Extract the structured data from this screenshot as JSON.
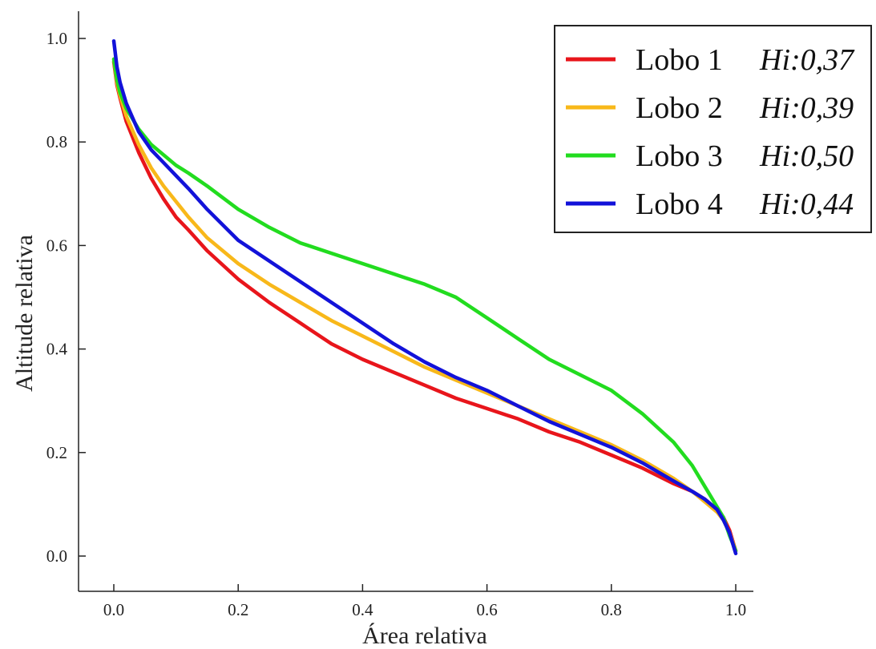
{
  "chart_data": {
    "type": "line",
    "title": "",
    "xlabel": "Área relativa",
    "ylabel": "Altitude relativa",
    "xlim": [
      0.0,
      1.0
    ],
    "ylim": [
      0.0,
      1.0
    ],
    "x_ticks": [
      "0.0",
      "0.2",
      "0.4",
      "0.6",
      "0.8",
      "1.0"
    ],
    "y_ticks": [
      "0.0",
      "0.2",
      "0.4",
      "0.6",
      "0.8",
      "1.0"
    ],
    "grid": false,
    "legend_position": "top-right",
    "series": [
      {
        "name": "Lobo 1",
        "hi": "Hi:0,37",
        "color": "#e8151b",
        "x": [
          0.0,
          0.005,
          0.01,
          0.02,
          0.04,
          0.06,
          0.08,
          0.1,
          0.12,
          0.15,
          0.2,
          0.25,
          0.3,
          0.35,
          0.4,
          0.45,
          0.5,
          0.55,
          0.6,
          0.65,
          0.7,
          0.75,
          0.8,
          0.85,
          0.9,
          0.93,
          0.95,
          0.97,
          0.98,
          0.99,
          1.0
        ],
        "y": [
          0.955,
          0.91,
          0.885,
          0.84,
          0.78,
          0.73,
          0.69,
          0.655,
          0.63,
          0.59,
          0.535,
          0.49,
          0.45,
          0.41,
          0.38,
          0.355,
          0.33,
          0.305,
          0.285,
          0.265,
          0.24,
          0.22,
          0.195,
          0.17,
          0.14,
          0.125,
          0.11,
          0.09,
          0.075,
          0.05,
          0.01
        ]
      },
      {
        "name": "Lobo 2",
        "hi": "Hi:0,39",
        "color": "#f8b81a",
        "x": [
          0.0,
          0.005,
          0.01,
          0.02,
          0.04,
          0.06,
          0.08,
          0.1,
          0.12,
          0.15,
          0.2,
          0.25,
          0.3,
          0.35,
          0.4,
          0.45,
          0.5,
          0.55,
          0.6,
          0.65,
          0.7,
          0.75,
          0.8,
          0.85,
          0.9,
          0.93,
          0.95,
          0.97,
          0.98,
          0.99,
          1.0
        ],
        "y": [
          0.96,
          0.915,
          0.89,
          0.85,
          0.795,
          0.75,
          0.715,
          0.685,
          0.655,
          0.615,
          0.565,
          0.525,
          0.49,
          0.455,
          0.425,
          0.395,
          0.365,
          0.34,
          0.315,
          0.29,
          0.265,
          0.24,
          0.215,
          0.185,
          0.15,
          0.125,
          0.105,
          0.085,
          0.07,
          0.045,
          0.01
        ]
      },
      {
        "name": "Lobo 3",
        "hi": "Hi:0,50",
        "color": "#22dc1f",
        "x": [
          0.0,
          0.005,
          0.01,
          0.02,
          0.04,
          0.06,
          0.08,
          0.1,
          0.12,
          0.15,
          0.2,
          0.25,
          0.3,
          0.35,
          0.4,
          0.45,
          0.5,
          0.55,
          0.6,
          0.65,
          0.7,
          0.75,
          0.8,
          0.85,
          0.9,
          0.93,
          0.95,
          0.97,
          0.98,
          0.99,
          1.0
        ],
        "y": [
          0.96,
          0.92,
          0.895,
          0.865,
          0.825,
          0.795,
          0.775,
          0.755,
          0.74,
          0.715,
          0.67,
          0.635,
          0.605,
          0.585,
          0.565,
          0.545,
          0.525,
          0.5,
          0.46,
          0.42,
          0.38,
          0.35,
          0.32,
          0.275,
          0.22,
          0.175,
          0.135,
          0.095,
          0.075,
          0.04,
          0.01
        ]
      },
      {
        "name": "Lobo 4",
        "hi": "Hi:0,44",
        "color": "#1212d9",
        "x": [
          0.0,
          0.005,
          0.01,
          0.02,
          0.04,
          0.06,
          0.08,
          0.1,
          0.12,
          0.15,
          0.2,
          0.25,
          0.3,
          0.35,
          0.4,
          0.45,
          0.5,
          0.55,
          0.6,
          0.65,
          0.7,
          0.75,
          0.8,
          0.85,
          0.9,
          0.93,
          0.95,
          0.97,
          0.98,
          0.99,
          1.0
        ],
        "y": [
          0.995,
          0.945,
          0.915,
          0.875,
          0.82,
          0.785,
          0.76,
          0.735,
          0.71,
          0.67,
          0.61,
          0.57,
          0.53,
          0.49,
          0.45,
          0.41,
          0.375,
          0.345,
          0.32,
          0.29,
          0.26,
          0.235,
          0.21,
          0.18,
          0.145,
          0.125,
          0.11,
          0.09,
          0.07,
          0.045,
          0.005
        ]
      }
    ]
  }
}
